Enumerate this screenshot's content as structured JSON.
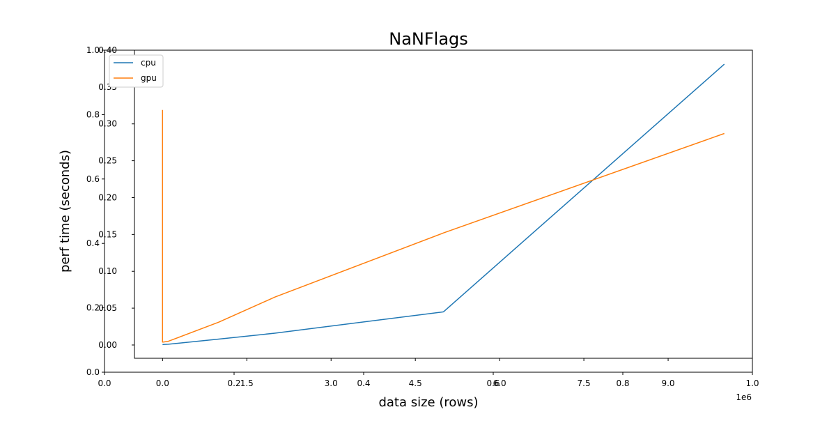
{
  "chart_data": {
    "type": "line",
    "title": "NaNFlags",
    "xlabel": "data size (rows)",
    "ylabel": "perf time (seconds)",
    "x_offset_label": "1e6",
    "legend_position": "upper-left",
    "xlim": [
      -500000,
      10500000
    ],
    "ylim": [
      -0.018,
      0.4
    ],
    "x_ticks": [
      0.0,
      1.5,
      3.0,
      4.5,
      6.0,
      7.5,
      9.0
    ],
    "x_tick_labels": [
      "0.0",
      "1.5",
      "3.0",
      "4.5",
      "6.0",
      "7.5",
      "9.0"
    ],
    "y_ticks": [
      0.0,
      0.05,
      0.1,
      0.15,
      0.2,
      0.25,
      0.3,
      0.35,
      0.4
    ],
    "y_tick_labels": [
      "0.00",
      "0.05",
      "0.10",
      "0.15",
      "0.20",
      "0.25",
      "0.30",
      "0.35",
      "0.40"
    ],
    "overlay_x_ticks": [
      0.0,
      0.2,
      0.4,
      0.6,
      0.8,
      1.0
    ],
    "overlay_x_tick_labels": [
      "0.0",
      "0.2",
      "0.4",
      "0.6",
      "0.8",
      "1.0"
    ],
    "overlay_y_ticks": [
      0.0,
      0.2,
      0.4,
      0.6,
      0.8,
      1.0
    ],
    "overlay_y_tick_labels": [
      "0.0",
      "0.2",
      "0.4",
      "0.6",
      "0.8",
      "1.0"
    ],
    "x": [
      10,
      100,
      1000,
      10000,
      100000,
      1000000,
      2000000,
      5000000,
      10000000
    ],
    "series": [
      {
        "name": "cpu",
        "color": "#1f77b4",
        "values": [
          0.0005,
          0.0005,
          0.0005,
          0.0006,
          0.001,
          0.008,
          0.016,
          0.045,
          0.381
        ]
      },
      {
        "name": "gpu",
        "color": "#ff7f0e",
        "values": [
          0.319,
          0.004,
          0.004,
          0.004,
          0.005,
          0.031,
          0.065,
          0.152,
          0.287
        ]
      }
    ]
  }
}
